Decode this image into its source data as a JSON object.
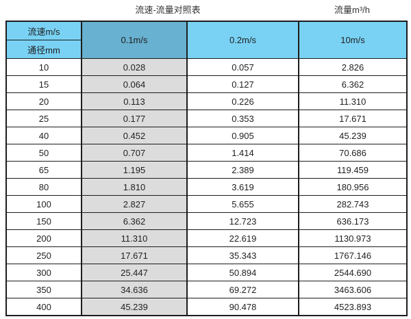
{
  "titles": {
    "main": "流速-流量对照表",
    "right": "流量m³/h"
  },
  "colors": {
    "header_cyan": "#79d2f4",
    "header_blue": "#68b1d0",
    "column_gray": "#dcdcdc",
    "border": "#1c1c1c",
    "text": "#1f1f1f"
  },
  "table": {
    "corner_top_label": "流速m/s",
    "corner_bottom_label": "通径mm",
    "velocity_headers": [
      "0.1m/s",
      "0.2m/s",
      "10m/s"
    ],
    "rows": [
      {
        "dn": "10",
        "values": [
          "0.028",
          "0.057",
          "2.826"
        ]
      },
      {
        "dn": "15",
        "values": [
          "0.064",
          "0.127",
          "6.362"
        ]
      },
      {
        "dn": "20",
        "values": [
          "0.113",
          "0.226",
          "11.310"
        ]
      },
      {
        "dn": "25",
        "values": [
          "0.177",
          "0.353",
          "17.671"
        ]
      },
      {
        "dn": "40",
        "values": [
          "0.452",
          "0.905",
          "45.239"
        ]
      },
      {
        "dn": "50",
        "values": [
          "0.707",
          "1.414",
          "70.686"
        ]
      },
      {
        "dn": "65",
        "values": [
          "1.195",
          "2.389",
          "119.459"
        ]
      },
      {
        "dn": "80",
        "values": [
          "1.810",
          "3.619",
          "180.956"
        ]
      },
      {
        "dn": "100",
        "values": [
          "2.827",
          "5.655",
          "282.743"
        ]
      },
      {
        "dn": "150",
        "values": [
          "6.362",
          "12.723",
          "636.173"
        ]
      },
      {
        "dn": "200",
        "values": [
          "11.310",
          "22.619",
          "1130.973"
        ]
      },
      {
        "dn": "250",
        "values": [
          "17.671",
          "35.343",
          "1767.146"
        ]
      },
      {
        "dn": "300",
        "values": [
          "25.447",
          "50.894",
          "2544.690"
        ]
      },
      {
        "dn": "350",
        "values": [
          "34.636",
          "69.272",
          "3463.606"
        ]
      },
      {
        "dn": "400",
        "values": [
          "45.239",
          "90.478",
          "4523.893"
        ]
      }
    ]
  },
  "chart_data": {
    "type": "table",
    "title": "流速-流量对照表",
    "unit_note": "流量m³/h",
    "columns": [
      "通径mm",
      "0.1m/s",
      "0.2m/s",
      "10m/s"
    ],
    "rows": [
      [
        10,
        0.028,
        0.057,
        2.826
      ],
      [
        15,
        0.064,
        0.127,
        6.362
      ],
      [
        20,
        0.113,
        0.226,
        11.31
      ],
      [
        25,
        0.177,
        0.353,
        17.671
      ],
      [
        40,
        0.452,
        0.905,
        45.239
      ],
      [
        50,
        0.707,
        1.414,
        70.686
      ],
      [
        65,
        1.195,
        2.389,
        119.459
      ],
      [
        80,
        1.81,
        3.619,
        180.956
      ],
      [
        100,
        2.827,
        5.655,
        282.743
      ],
      [
        150,
        6.362,
        12.723,
        636.173
      ],
      [
        200,
        11.31,
        22.619,
        1130.973
      ],
      [
        250,
        17.671,
        35.343,
        1767.146
      ],
      [
        300,
        25.447,
        50.894,
        2544.69
      ],
      [
        350,
        34.636,
        69.272,
        3463.606
      ],
      [
        400,
        45.239,
        90.478,
        4523.893
      ]
    ]
  }
}
